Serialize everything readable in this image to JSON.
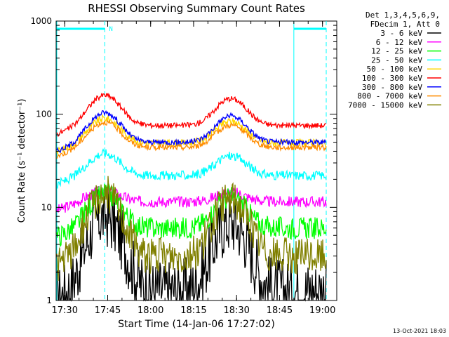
{
  "chart_data": {
    "type": "line",
    "title": "RHESSI Observing Summary Count Rates",
    "xlabel": "Start Time (14-Jan-06 17:27:02)",
    "ylabel": "Count Rate (s⁻¹ detector⁻¹)",
    "yscale": "log",
    "ylim": [
      1,
      1000
    ],
    "xlim_minutes": [
      17.45,
      19.083
    ],
    "x_ticks": [
      "17:30",
      "17:45",
      "18:00",
      "18:15",
      "18:30",
      "18:45",
      "19:00"
    ],
    "y_ticks": [
      "1",
      "10",
      "100",
      "1000"
    ],
    "legend_header": [
      "Det 1,3,4,5,6,9,",
      "FDecim 1, Att 0"
    ],
    "legend_position": "right",
    "timestamp": "13-Oct-2021 18:03",
    "night_marker_label": "N",
    "night_intervals": [
      [
        "17:27",
        "17:44"
      ],
      [
        "18:50",
        "19:03"
      ]
    ],
    "series": [
      {
        "name": "3 - 6 keV",
        "color": "#000000",
        "peak1": 8,
        "base": 1.3,
        "noise": 0.35
      },
      {
        "name": "6 - 12 keV",
        "color": "#ff00ff",
        "peak1": 15,
        "base": 11.5,
        "noise": 0.06
      },
      {
        "name": "12 - 25 keV",
        "color": "#00ff00",
        "peak1": 14,
        "base": 6,
        "noise": 0.12
      },
      {
        "name": "25 - 50 keV",
        "color": "#00ffff",
        "peak1": 38,
        "base": 22,
        "noise": 0.05
      },
      {
        "name": "50 - 100 keV",
        "color": "#ffd700",
        "peak1": 90,
        "base": 49,
        "noise": 0.04
      },
      {
        "name": "100 - 300 keV",
        "color": "#ff0000",
        "peak1": 160,
        "base": 76,
        "noise": 0.03
      },
      {
        "name": "300 - 800 keV",
        "color": "#0000ff",
        "peak1": 104,
        "base": 50,
        "noise": 0.03
      },
      {
        "name": "800 - 7000 keV",
        "color": "#ff8c00",
        "peak1": 82,
        "base": 44,
        "noise": 0.03
      },
      {
        "name": "7000 - 15000 keV",
        "color": "#808000",
        "peak1": 14,
        "base": 3,
        "noise": 0.2
      }
    ]
  }
}
